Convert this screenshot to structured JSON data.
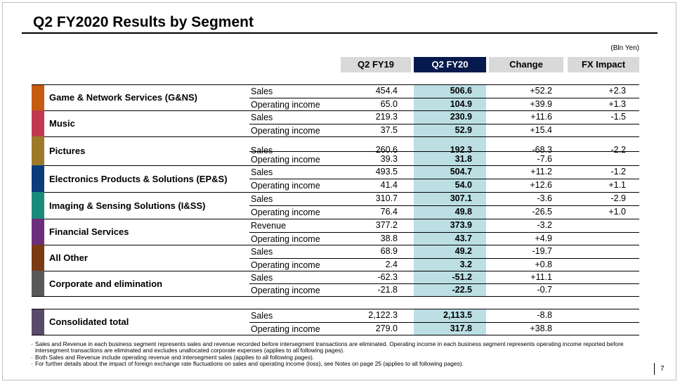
{
  "title": "Q2 FY2020  Results by Segment",
  "unit": "(Bln Yen)",
  "columns": {
    "q2fy19": "Q2 FY19",
    "q2fy20": "Q2 FY20",
    "change": "Change",
    "fx": "FX Impact"
  },
  "colors": {
    "header_gray": "#d9d9d9",
    "header_highlight": "#071a4d",
    "highlight_band": "#bcdfe4"
  },
  "segments": [
    {
      "name": "Game & Network Services (G&NS)",
      "color": "#c55a11",
      "rows": [
        {
          "label": "Sales",
          "fy19": "454.4",
          "fy20": "506.6",
          "change": "+52.2",
          "fx": "+2.3"
        },
        {
          "label": "Operating income",
          "fy19": "65.0",
          "fy20": "104.9",
          "change": "+39.9",
          "fx": "+1.3"
        }
      ]
    },
    {
      "name": "Music",
      "color": "#c0394e",
      "rows": [
        {
          "label": "Sales",
          "fy19": "219.3",
          "fy20": "230.9",
          "change": "+11.6",
          "fx": "-1.5"
        },
        {
          "label": "Operating income",
          "fy19": "37.5",
          "fy20": "52.9",
          "change": "+15.4",
          "fx": ""
        }
      ]
    },
    {
      "name": "Pictures",
      "color": "#9c7a2a",
      "rows": [
        {
          "label": "Sales",
          "fy19": "260.6",
          "fy20": "192.3",
          "change": "-68.3",
          "fx": "-2.2"
        },
        {
          "label": "Operating income",
          "fy19": "39.3",
          "fy20": "31.8",
          "change": "-7.6",
          "fx": ""
        }
      ]
    },
    {
      "name": "Electronics Products & Solutions (EP&S)",
      "color": "#0b3c7a",
      "rows": [
        {
          "label": "Sales",
          "fy19": "493.5",
          "fy20": "504.7",
          "change": "+11.2",
          "fx": "-1.2"
        },
        {
          "label": "Operating income",
          "fy19": "41.4",
          "fy20": "54.0",
          "change": "+12.6",
          "fx": "+1.1"
        }
      ]
    },
    {
      "name": "Imaging & Sensing Solutions (I&SS)",
      "color": "#1a8a7a",
      "rows": [
        {
          "label": "Sales",
          "fy19": "310.7",
          "fy20": "307.1",
          "change": "-3.6",
          "fx": "-2.9"
        },
        {
          "label": "Operating income",
          "fy19": "76.4",
          "fy20": "49.8",
          "change": "-26.5",
          "fx": "+1.0"
        }
      ]
    },
    {
      "name": "Financial Services",
      "color": "#6b2f7e",
      "rows": [
        {
          "label": "Revenue",
          "fy19": "377.2",
          "fy20": "373.9",
          "change": "-3.2",
          "fx": ""
        },
        {
          "label": "Operating income",
          "fy19": "38.8",
          "fy20": "43.7",
          "change": "+4.9",
          "fx": ""
        }
      ]
    },
    {
      "name": "All Other",
      "color": "#7a3a14",
      "rows": [
        {
          "label": "Sales",
          "fy19": "68.9",
          "fy20": "49.2",
          "change": "-19.7",
          "fx": ""
        },
        {
          "label": "Operating income",
          "fy19": "2.4",
          "fy20": "3.2",
          "change": "+0.8",
          "fx": ""
        }
      ]
    },
    {
      "name": "Corporate and elimination",
      "color": "#595959",
      "rows": [
        {
          "label": "Sales",
          "fy19": "-62.3",
          "fy20": "-51.2",
          "change": "+11.1",
          "fx": ""
        },
        {
          "label": "Operating income",
          "fy19": "-21.8",
          "fy20": "-22.5",
          "change": "-0.7",
          "fx": ""
        }
      ]
    }
  ],
  "total": {
    "name": "Consolidated total",
    "color": "#5a4a6a",
    "rows": [
      {
        "label": "Sales",
        "fy19": "2,122.3",
        "fy20": "2,113.5",
        "change": "-8.8",
        "fx": ""
      },
      {
        "label": "Operating income",
        "fy19": "279.0",
        "fy20": "317.8",
        "change": "+38.8",
        "fx": ""
      }
    ]
  },
  "notes": [
    "Sales and Revenue in each business segment represents sales and revenue recorded before intersegment transactions are eliminated. Operating income in each business segment represents operating income reported before intersegment transactions are eliminated and excludes unallocated corporate expenses (applies to all following pages).",
    "Both Sales and Revenue include operating revenue and intersegment sales (applies to all following pages).",
    "For further details about the impact of foreign exchange rate fluctuations on sales and operating income (loss), see Notes on page 25 (applies to all following pages)."
  ],
  "page_number": "7"
}
